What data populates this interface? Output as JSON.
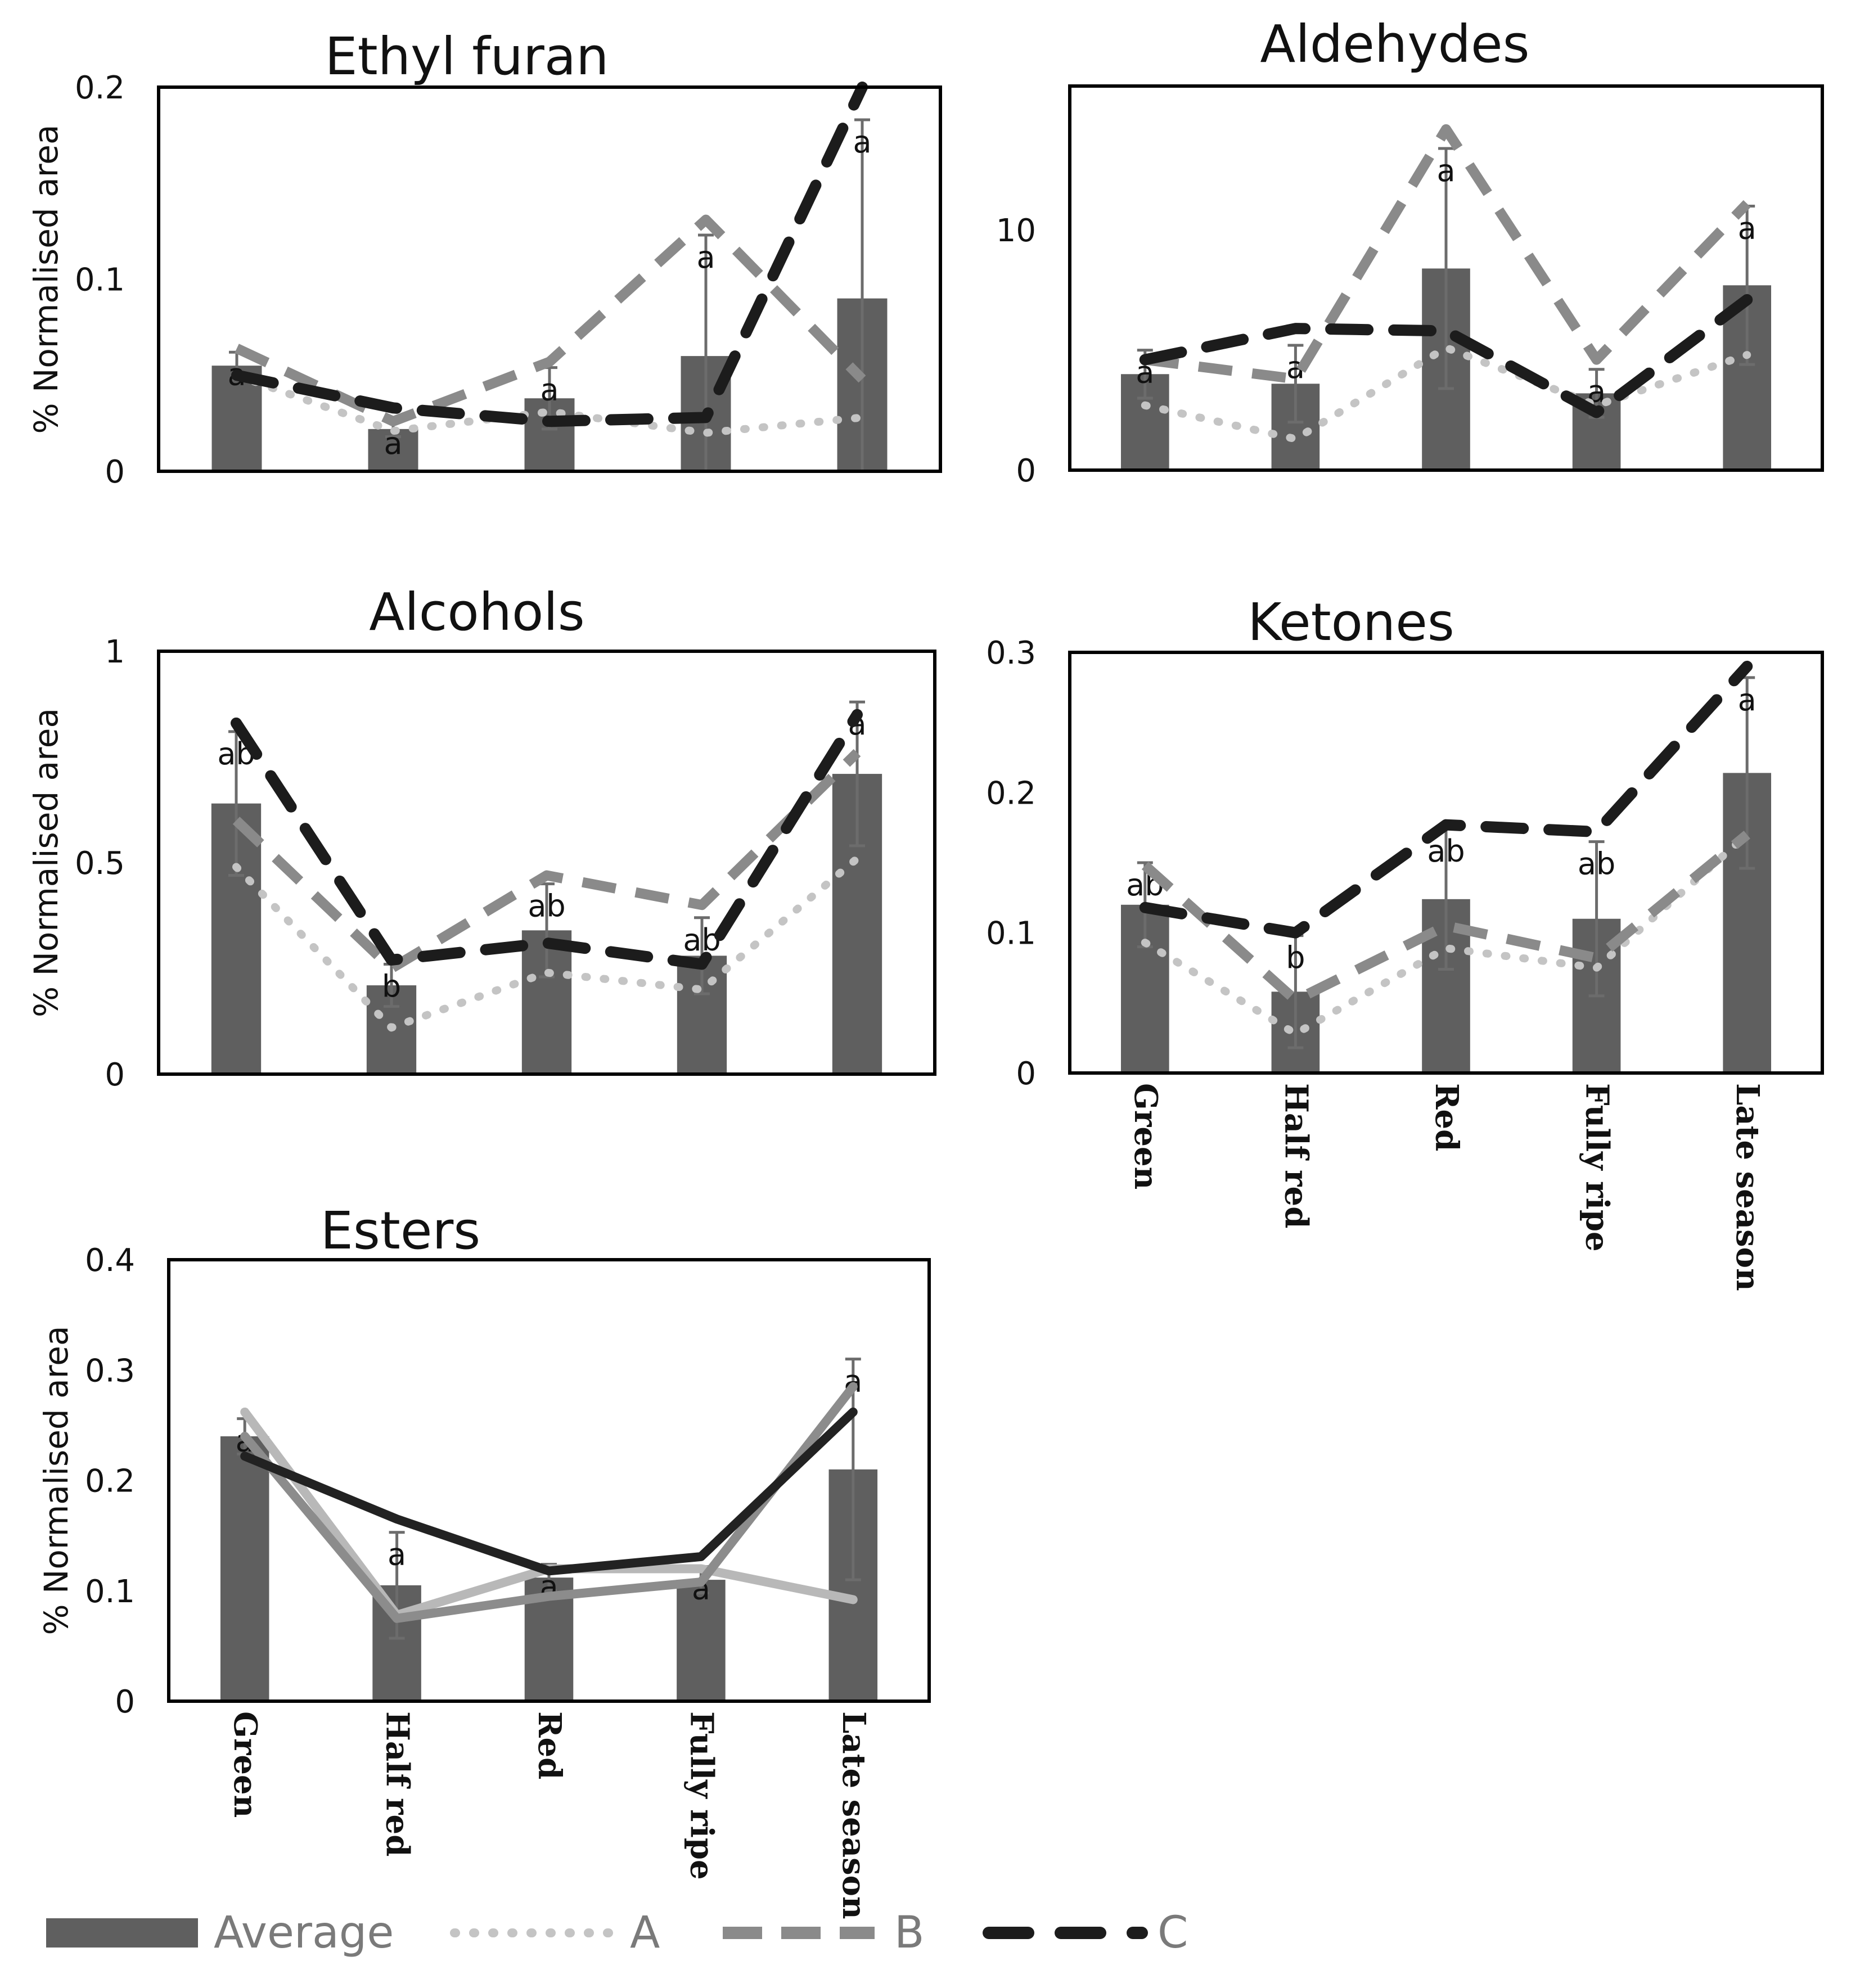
{
  "categories": [
    "Green",
    "Half red",
    "Red",
    "Fully ripe",
    "Late season"
  ],
  "legend": {
    "average": "Average",
    "a": "A",
    "b": "B",
    "c": "C"
  },
  "colors": {
    "bar": "#5f5f5f",
    "a": "#c4c4c4",
    "b": "#8a8a8a",
    "c": "#1c1c1c",
    "esters_a": "#b8b8b8",
    "esters_b": "#8c8c8c",
    "esters_c": "#222222"
  },
  "chart_data": [
    {
      "id": "ethyl",
      "type": "bar",
      "title": "Ethyl furan",
      "ylabel": "% Normalised area",
      "ylim": [
        0,
        0.2
      ],
      "yticks": [
        "0",
        "0.1",
        "0.2"
      ],
      "show_categories": false,
      "line_style": "patterned",
      "average": [
        0.055,
        0.022,
        0.038,
        0.06,
        0.09
      ],
      "error": [
        0.007,
        0.004,
        0.016,
        0.063,
        0.093
      ],
      "letters": [
        "a",
        "a",
        "a",
        "a",
        "a"
      ],
      "series": [
        {
          "name": "A",
          "values": [
            0.05,
            0.021,
            0.031,
            0.02,
            0.028
          ]
        },
        {
          "name": "B",
          "values": [
            0.064,
            0.026,
            0.057,
            0.131,
            0.048
          ]
        },
        {
          "name": "C",
          "values": [
            0.05,
            0.033,
            0.026,
            0.028,
            0.2
          ]
        }
      ]
    },
    {
      "id": "aldehydes",
      "type": "bar",
      "title": "Aldehydes",
      "ylabel": "",
      "ylim": [
        0,
        16
      ],
      "yticks": [
        "0",
        "10"
      ],
      "show_categories": false,
      "line_style": "patterned",
      "average": [
        4.0,
        3.6,
        8.4,
        3.2,
        7.7
      ],
      "error": [
        1.0,
        1.6,
        5.0,
        1.0,
        3.3
      ],
      "letters": [
        "a",
        "a",
        "a",
        "a",
        "a"
      ],
      "series": [
        {
          "name": "A",
          "values": [
            2.7,
            1.3,
            5.1,
            2.7,
            4.8
          ]
        },
        {
          "name": "B",
          "values": [
            4.6,
            3.8,
            14.2,
            4.6,
            11.1
          ]
        },
        {
          "name": "C",
          "values": [
            4.6,
            5.9,
            5.8,
            2.4,
            7.1
          ]
        }
      ]
    },
    {
      "id": "alcohols",
      "type": "bar",
      "title": "Alcohols",
      "ylabel": "% Normalised area",
      "ylim": [
        0,
        1
      ],
      "yticks": [
        "0",
        "0.5",
        "1"
      ],
      "show_categories": false,
      "line_style": "patterned",
      "average": [
        0.64,
        0.21,
        0.34,
        0.28,
        0.71
      ],
      "error": [
        0.17,
        0.05,
        0.11,
        0.09,
        0.17
      ],
      "letters": [
        "ab",
        "b",
        "ab",
        "ab",
        "a"
      ],
      "series": [
        {
          "name": "A",
          "values": [
            0.49,
            0.11,
            0.24,
            0.2,
            0.51
          ]
        },
        {
          "name": "B",
          "values": [
            0.6,
            0.25,
            0.47,
            0.4,
            0.76
          ]
        },
        {
          "name": "C",
          "values": [
            0.83,
            0.27,
            0.31,
            0.26,
            0.85
          ]
        }
      ]
    },
    {
      "id": "ketones",
      "type": "bar",
      "title": "Ketones",
      "ylabel": "",
      "ylim": [
        0,
        0.3
      ],
      "yticks": [
        "0",
        "0.1",
        "0.2",
        "0.3"
      ],
      "show_categories": true,
      "line_style": "patterned",
      "average": [
        0.12,
        0.058,
        0.124,
        0.11,
        0.214
      ],
      "error": [
        0.03,
        0.04,
        0.05,
        0.055,
        0.068
      ],
      "letters": [
        "ab",
        "b",
        "ab",
        "ab",
        "a"
      ],
      "series": [
        {
          "name": "A",
          "values": [
            0.093,
            0.028,
            0.089,
            0.075,
            0.17
          ]
        },
        {
          "name": "B",
          "values": [
            0.148,
            0.052,
            0.105,
            0.082,
            0.17
          ]
        },
        {
          "name": "C",
          "values": [
            0.118,
            0.1,
            0.177,
            0.172,
            0.29
          ]
        }
      ]
    },
    {
      "id": "esters",
      "type": "bar",
      "title": "Esters",
      "ylabel": "% Normalised area",
      "ylim": [
        0,
        0.4
      ],
      "yticks": [
        "0",
        "0.1",
        "0.2",
        "0.3",
        "0.4"
      ],
      "show_categories": true,
      "line_style": "solid",
      "average": [
        0.24,
        0.105,
        0.112,
        0.11,
        0.21
      ],
      "error": [
        0.016,
        0.048,
        0.012,
        0.012,
        0.1
      ],
      "letters": [
        "a",
        "a",
        "a",
        "a",
        "a"
      ],
      "series": [
        {
          "name": "A",
          "values": [
            0.262,
            0.078,
            0.12,
            0.12,
            0.092
          ]
        },
        {
          "name": "B",
          "values": [
            0.24,
            0.075,
            0.095,
            0.108,
            0.285
          ]
        },
        {
          "name": "C",
          "values": [
            0.222,
            0.165,
            0.118,
            0.131,
            0.262
          ]
        }
      ]
    }
  ]
}
